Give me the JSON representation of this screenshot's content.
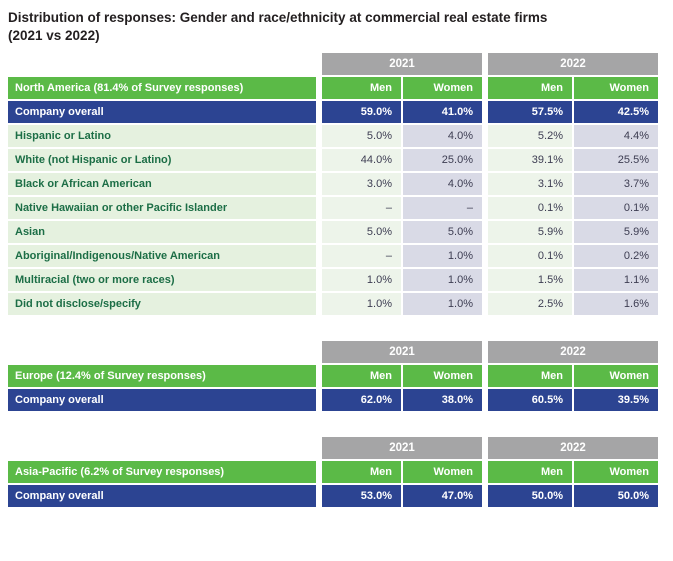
{
  "title": "Distribution of responses: Gender and race/ethnicity at commercial real estate firms\n(2021 vs 2022)",
  "colors": {
    "header_gray": "#a5a5a6",
    "region_green": "#5bba47",
    "overall_blue": "#2c4492",
    "label_bg": "#e5f1df",
    "men_bg": "#edf4ea",
    "women_bg": "#d9dae6",
    "label_text": "#1c6e46",
    "value_text": "#3d3d52"
  },
  "chart_data": [
    {
      "type": "table",
      "region": "North America (81.4% of Survey responses)",
      "column_groups": [
        "2021",
        "2022"
      ],
      "columns": [
        "Men",
        "Women",
        "Men",
        "Women"
      ],
      "rows": [
        {
          "label": "Company overall",
          "values": [
            "59.0%",
            "41.0%",
            "57.5%",
            "42.5%"
          ]
        },
        {
          "label": "Hispanic or Latino",
          "values": [
            "5.0%",
            "4.0%",
            "5.2%",
            "4.4%"
          ]
        },
        {
          "label": "White (not Hispanic or Latino)",
          "values": [
            "44.0%",
            "25.0%",
            "39.1%",
            "25.5%"
          ]
        },
        {
          "label": "Black or African American",
          "values": [
            "3.0%",
            "4.0%",
            "3.1%",
            "3.7%"
          ]
        },
        {
          "label": "Native Hawaiian or other Pacific Islander",
          "values": [
            "–",
            "–",
            "0.1%",
            "0.1%"
          ]
        },
        {
          "label": "Asian",
          "values": [
            "5.0%",
            "5.0%",
            "5.9%",
            "5.9%"
          ]
        },
        {
          "label": "Aboriginal/Indigenous/Native American",
          "values": [
            "–",
            "1.0%",
            "0.1%",
            "0.2%"
          ]
        },
        {
          "label": "Multiracial (two or more races)",
          "values": [
            "1.0%",
            "1.0%",
            "1.5%",
            "1.1%"
          ]
        },
        {
          "label": "Did not disclose/specify",
          "values": [
            "1.0%",
            "1.0%",
            "2.5%",
            "1.6%"
          ]
        }
      ]
    },
    {
      "type": "table",
      "region": "Europe (12.4% of Survey responses)",
      "column_groups": [
        "2021",
        "2022"
      ],
      "columns": [
        "Men",
        "Women",
        "Men",
        "Women"
      ],
      "rows": [
        {
          "label": "Company overall",
          "values": [
            "62.0%",
            "38.0%",
            "60.5%",
            "39.5%"
          ]
        }
      ]
    },
    {
      "type": "table",
      "region": "Asia-Pacific (6.2% of Survey responses)",
      "column_groups": [
        "2021",
        "2022"
      ],
      "columns": [
        "Men",
        "Women",
        "Men",
        "Women"
      ],
      "rows": [
        {
          "label": "Company overall",
          "values": [
            "53.0%",
            "47.0%",
            "50.0%",
            "50.0%"
          ]
        }
      ]
    }
  ]
}
